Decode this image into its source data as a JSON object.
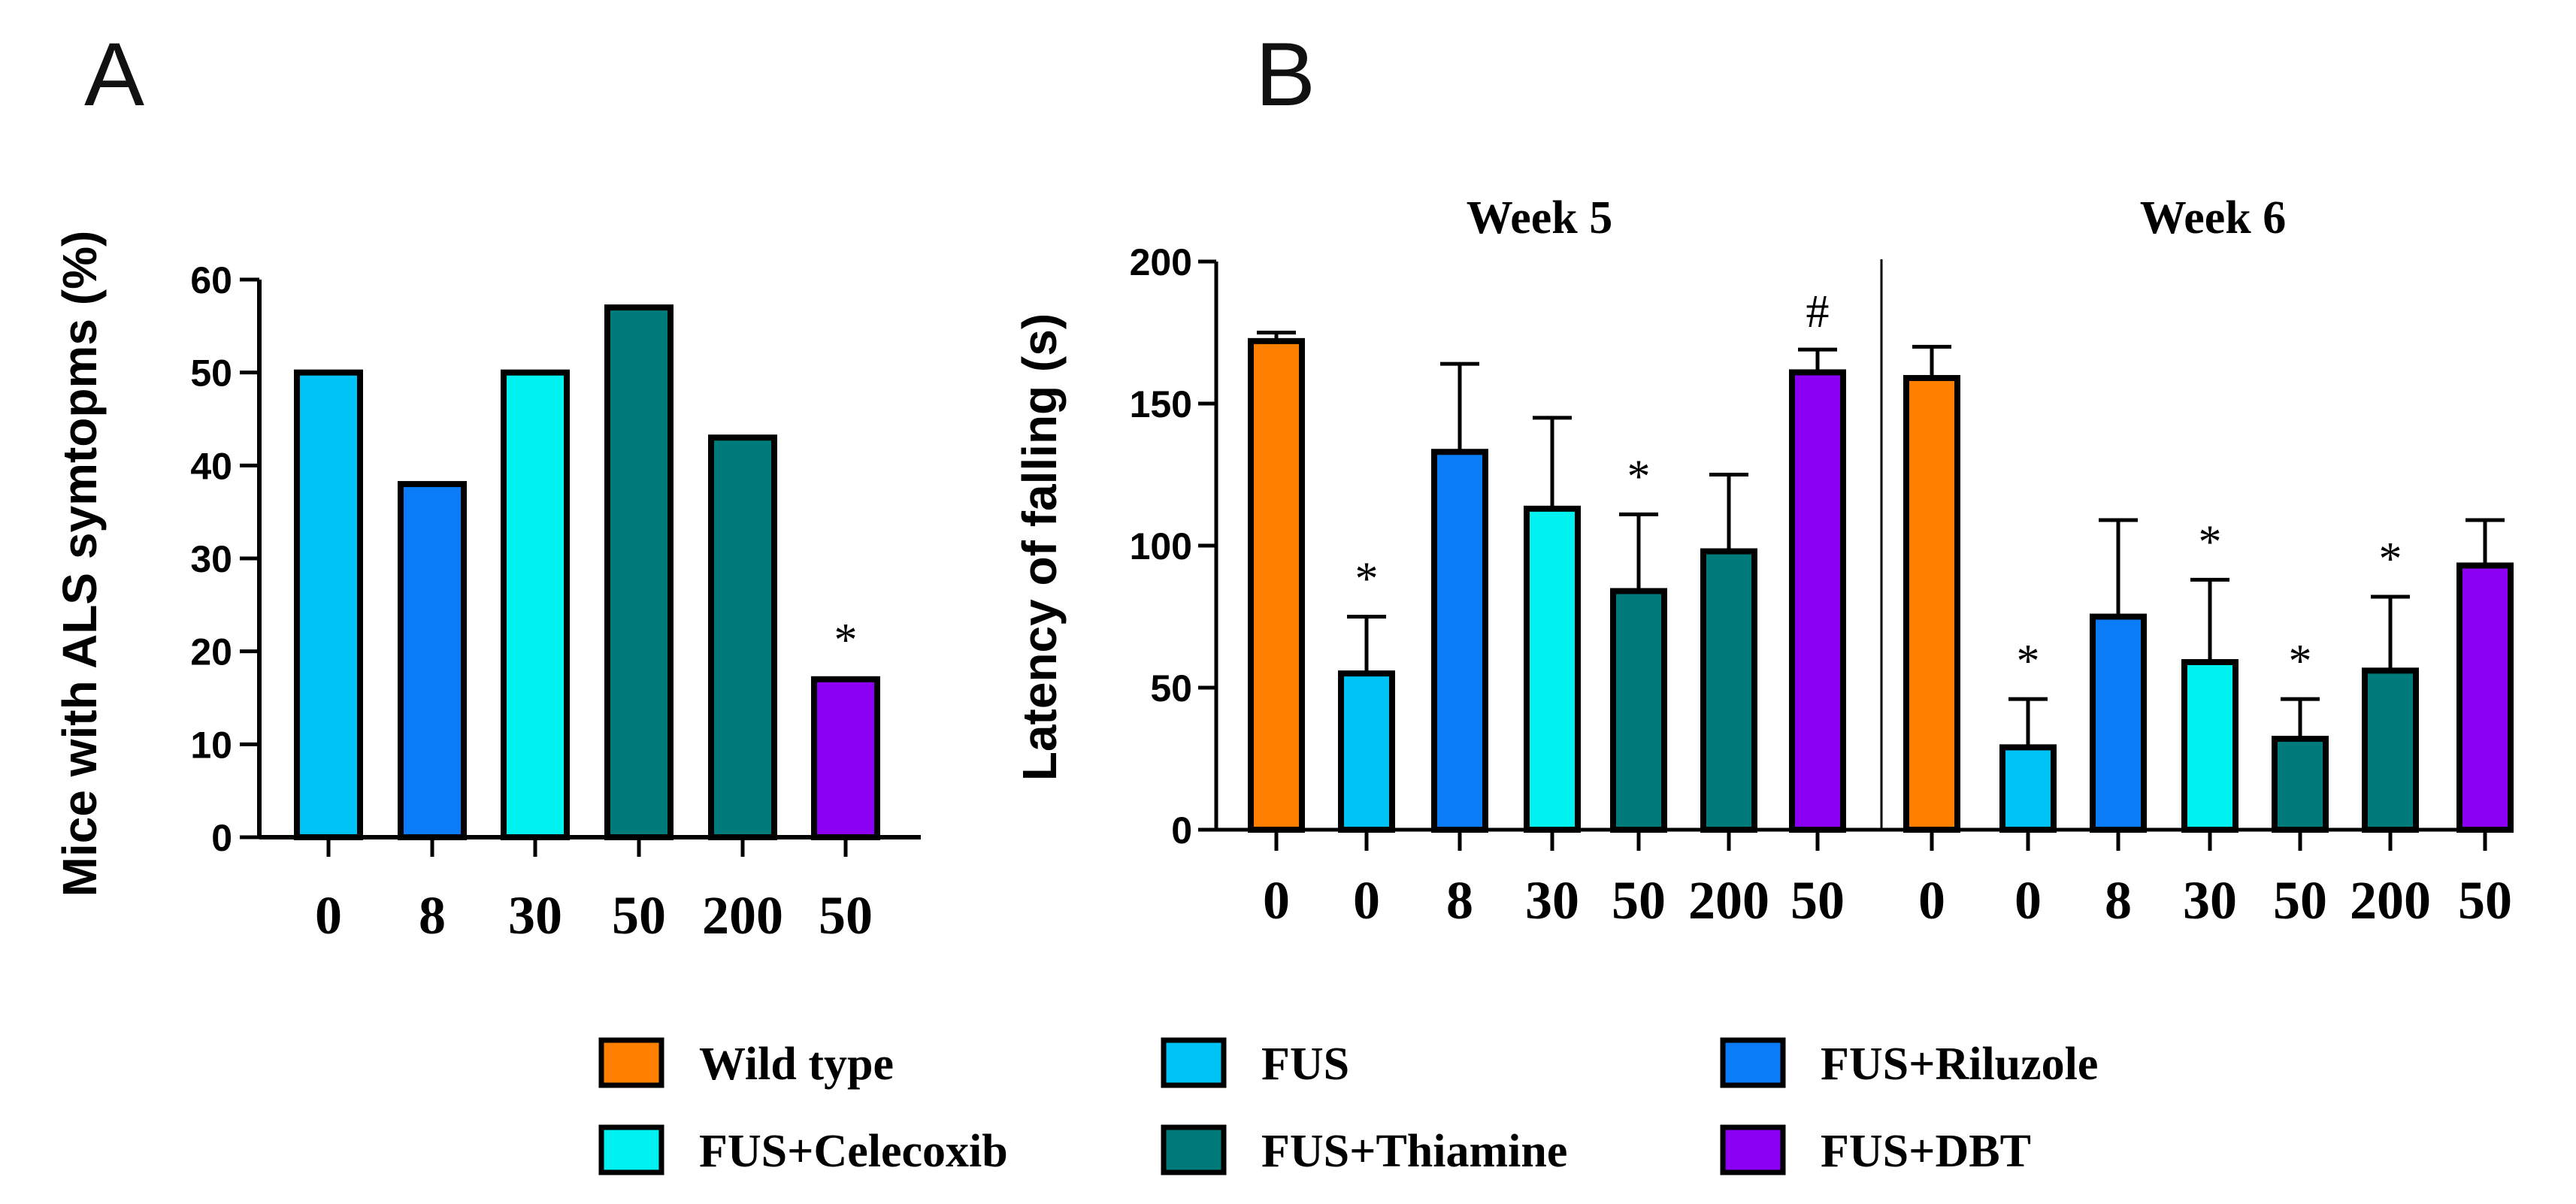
{
  "panels": {
    "a": "A",
    "b": "B"
  },
  "colors": {
    "wild_type": "#FF8000",
    "fus": "#00C3F5",
    "riluzole": "#0A7CF7",
    "celecoxib": "#00F2F0",
    "thiamine": "#007B7B",
    "dbt": "#8B00F5"
  },
  "legend": [
    {
      "label": "Wild type",
      "color_key": "wild_type"
    },
    {
      "label": "FUS",
      "color_key": "fus"
    },
    {
      "label": "FUS+Riluzole",
      "color_key": "riluzole"
    },
    {
      "label": "FUS+Celecoxib",
      "color_key": "celecoxib"
    },
    {
      "label": "FUS+Thiamine",
      "color_key": "thiamine"
    },
    {
      "label": "FUS+DBT",
      "color_key": "dbt"
    }
  ],
  "chart_data": [
    {
      "type": "bar",
      "panel": "A",
      "ylabel": "Mice with ALS symtopms (%)",
      "xlabel": "",
      "ylim": [
        0,
        60
      ],
      "yticks": [
        0,
        10,
        20,
        30,
        40,
        50,
        60
      ],
      "categories": [
        "0",
        "8",
        "30",
        "50",
        "200",
        "50"
      ],
      "groups": [
        "fus",
        "riluzole",
        "celecoxib",
        "thiamine",
        "thiamine",
        "dbt"
      ],
      "values": [
        50,
        38,
        50,
        57,
        43,
        17
      ],
      "annotations": [
        "",
        "",
        "",
        "",
        "",
        "*"
      ]
    },
    {
      "type": "bar",
      "panel": "B",
      "ylabel": "Latency of falling (s)",
      "xlabel": "",
      "ylim": [
        0,
        200
      ],
      "yticks": [
        0,
        50,
        100,
        150,
        200
      ],
      "facets": [
        {
          "title": "Week 5",
          "categories": [
            "0",
            "0",
            "8",
            "30",
            "50",
            "200",
            "50"
          ],
          "groups": [
            "wild_type",
            "fus",
            "riluzole",
            "celecoxib",
            "thiamine",
            "thiamine",
            "dbt"
          ],
          "values": [
            172,
            55,
            133,
            113,
            84,
            98,
            161
          ],
          "errors": [
            3,
            20,
            31,
            32,
            27,
            27,
            8
          ],
          "annotations": [
            "",
            "*",
            "",
            "",
            "*",
            "",
            "#"
          ]
        },
        {
          "title": "Week 6",
          "categories": [
            "0",
            "0",
            "8",
            "30",
            "50",
            "200",
            "50"
          ],
          "groups": [
            "wild_type",
            "fus",
            "riluzole",
            "celecoxib",
            "thiamine",
            "thiamine",
            "dbt"
          ],
          "values": [
            159,
            29,
            75,
            59,
            32,
            56,
            93
          ],
          "errors": [
            11,
            17,
            34,
            29,
            14,
            26,
            16
          ],
          "annotations": [
            "",
            "*",
            "",
            "*",
            "*",
            "*",
            ""
          ]
        }
      ]
    }
  ]
}
